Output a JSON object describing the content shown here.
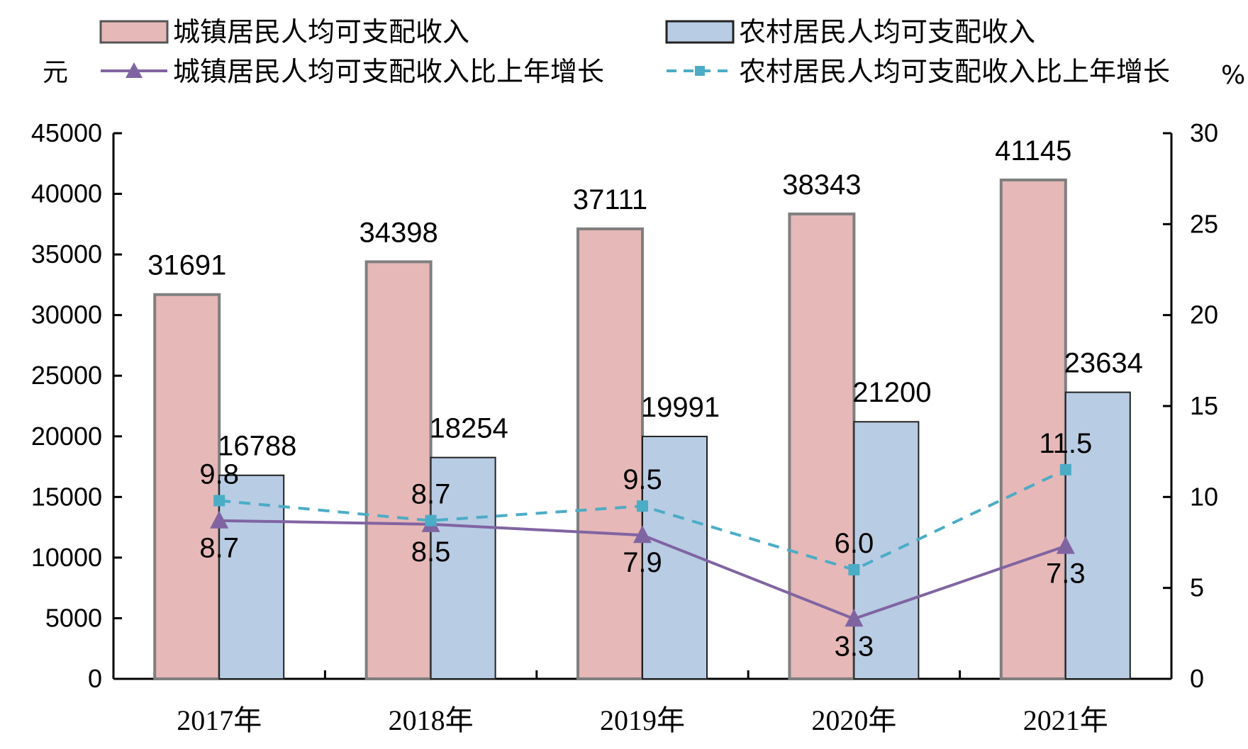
{
  "chart_data": {
    "type": "bar",
    "categories": [
      "2017年",
      "2018年",
      "2019年",
      "2020年",
      "2021年"
    ],
    "left_axis": {
      "unit": "元",
      "ylim": [
        0,
        45000
      ],
      "ticks": [
        "0",
        "5000",
        "10000",
        "15000",
        "20000",
        "25000",
        "30000",
        "35000",
        "40000",
        "45000"
      ]
    },
    "right_axis": {
      "unit": "%",
      "ylim": [
        0,
        30
      ],
      "ticks": [
        "0",
        "5",
        "10",
        "15",
        "20",
        "25",
        "30"
      ]
    },
    "series": [
      {
        "name": "城镇居民人均可支配收入",
        "type": "bar",
        "axis": "left",
        "color": "#E6B8B7",
        "values": [
          31691,
          34398,
          37111,
          38343,
          41145
        ],
        "labels": [
          "31691",
          "34398",
          "37111",
          "38343",
          "41145"
        ]
      },
      {
        "name": "农村居民人均可支配收入",
        "type": "bar",
        "axis": "left",
        "color": "#B8CCE4",
        "values": [
          16788,
          18254,
          19991,
          21200,
          23634
        ],
        "labels": [
          "16788",
          "18254",
          "19991",
          "21200",
          "23634"
        ]
      },
      {
        "name": "城镇居民人均可支配收入比上年增长",
        "type": "line",
        "axis": "right",
        "color": "#8064A2",
        "marker": "triangle",
        "values": [
          8.7,
          8.5,
          7.9,
          3.3,
          7.3
        ],
        "labels": [
          "8.7",
          "8.5",
          "7.9",
          "3.3",
          "7.3"
        ]
      },
      {
        "name": "农村居民人均可支配收入比上年增长",
        "type": "line",
        "axis": "right",
        "color": "#4BACC6",
        "marker": "square",
        "dashed": true,
        "values": [
          9.8,
          8.7,
          9.5,
          6.0,
          11.5
        ],
        "labels": [
          "9.8",
          "8.7",
          "9.5",
          "6.0",
          "11.5"
        ]
      }
    ],
    "legend": "top",
    "grid": false
  }
}
